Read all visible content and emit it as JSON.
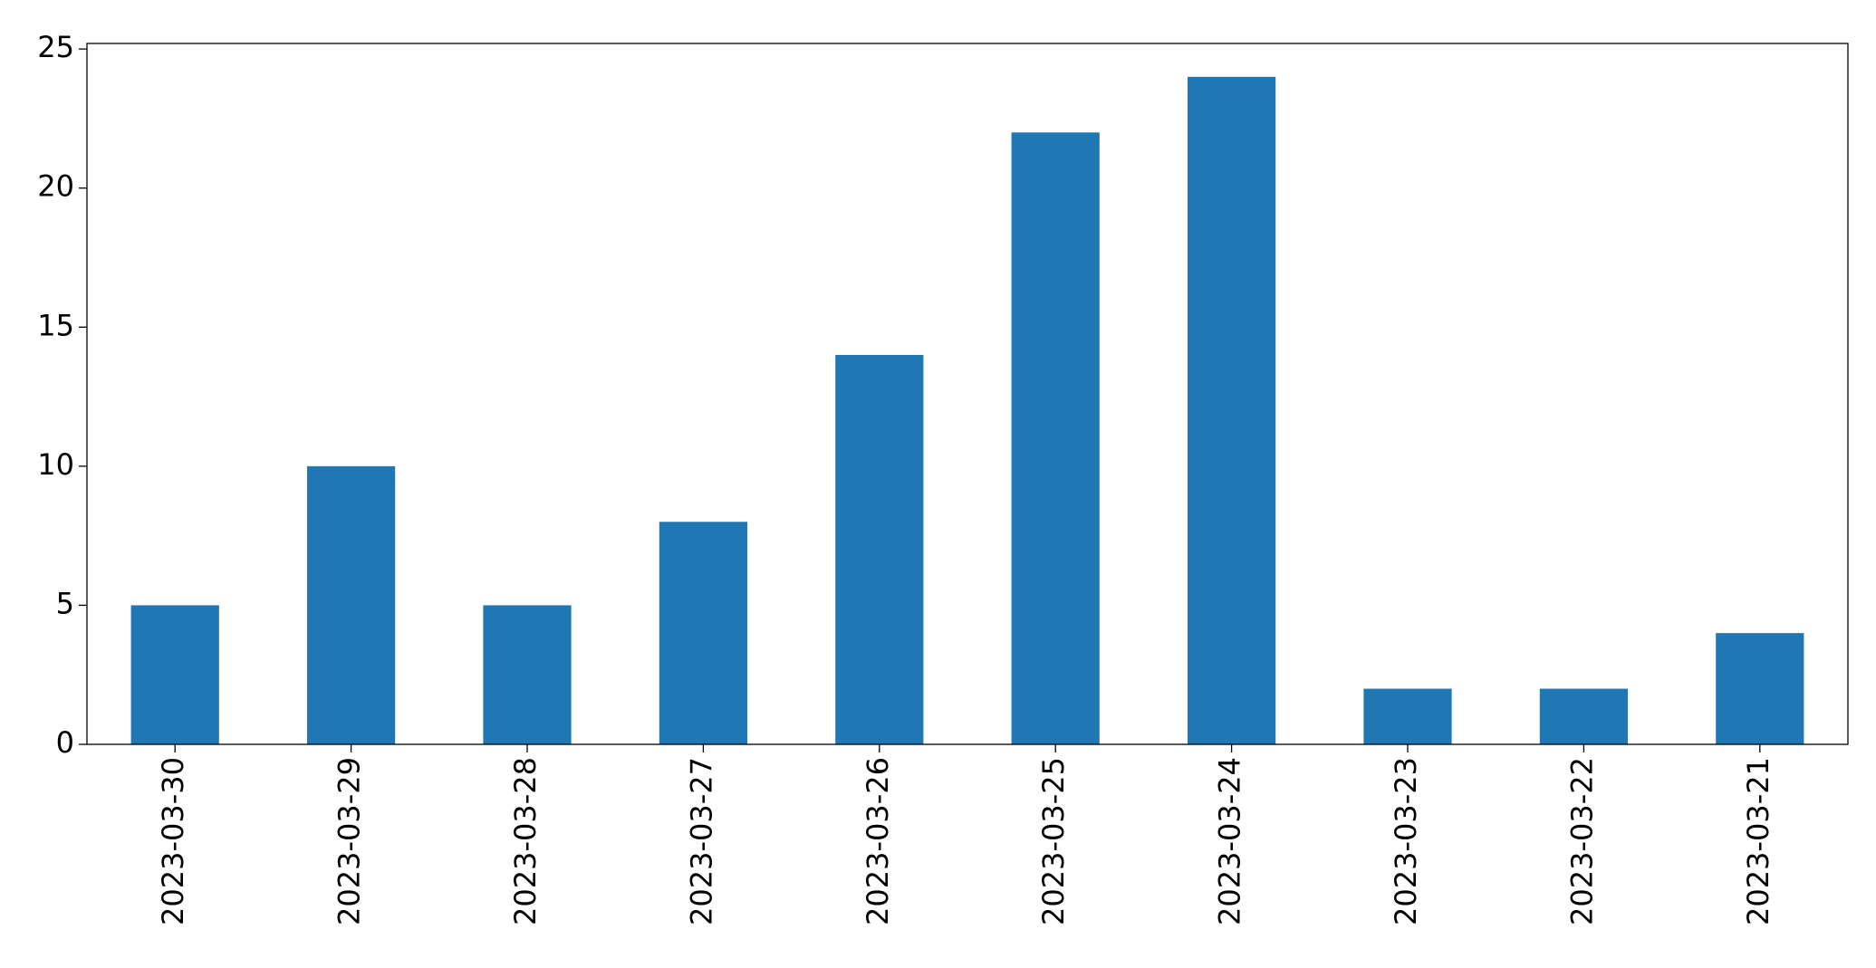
{
  "chart_data": {
    "type": "bar",
    "categories": [
      "2023-03-30",
      "2023-03-29",
      "2023-03-28",
      "2023-03-27",
      "2023-03-26",
      "2023-03-25",
      "2023-03-24",
      "2023-03-23",
      "2023-03-22",
      "2023-03-21"
    ],
    "values": [
      5,
      10,
      5,
      8,
      14,
      22,
      24,
      2,
      2,
      4
    ],
    "color": "#1f77b4",
    "ylim": [
      0,
      25.2
    ],
    "yticks": [
      0,
      5,
      10,
      15,
      20,
      25
    ],
    "grid": false
  }
}
